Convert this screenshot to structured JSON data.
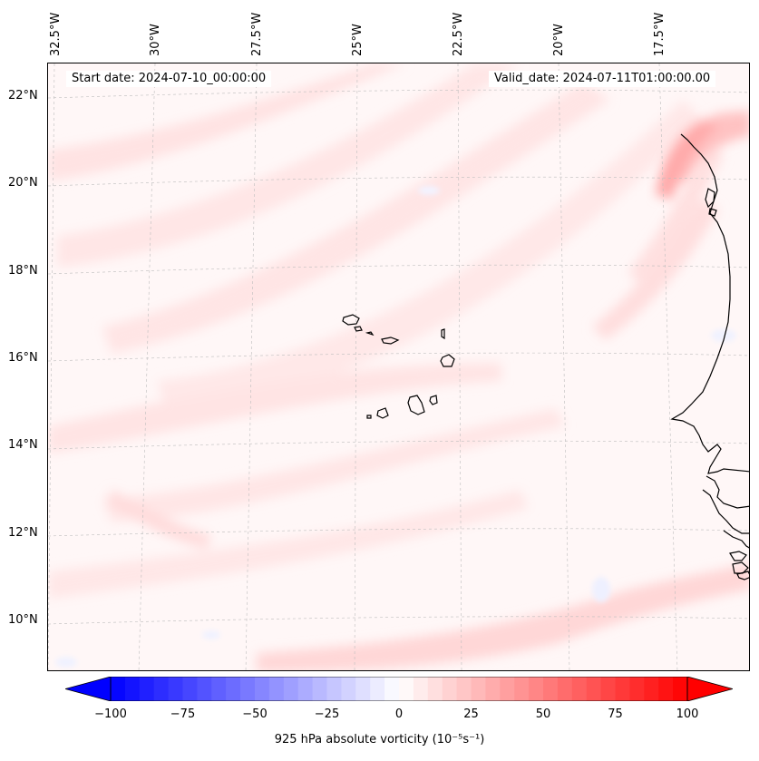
{
  "map": {
    "longitude_labels": [
      "32.5°W",
      "30°W",
      "27.5°W",
      "25°W",
      "22.5°W",
      "20°W",
      "17.5°W"
    ],
    "latitude_labels": [
      "22°N",
      "20°N",
      "18°N",
      "16°N",
      "14°N",
      "12°N",
      "10°N"
    ],
    "start_date": "Start date: 2024-07-10_00:00:00",
    "valid_date": "Valid_date: 2024-07-11T01:00:00.00",
    "colors": {
      "background": "#fff7f7",
      "light_red": "#ffe3e3",
      "medium_red": "#ffcdcd",
      "strong_red": "#ffa9a9",
      "light_blue": "#f0f2ff",
      "coastline": "#000000"
    }
  },
  "colorbar": {
    "tick_labels": [
      "−100",
      "−75",
      "−50",
      "−25",
      "0",
      "25",
      "50",
      "75",
      "100"
    ],
    "label": "925 hPa absolute vorticity (10⁻⁵s⁻¹)",
    "range": [
      -100,
      100
    ],
    "colormap": "bwr"
  }
}
